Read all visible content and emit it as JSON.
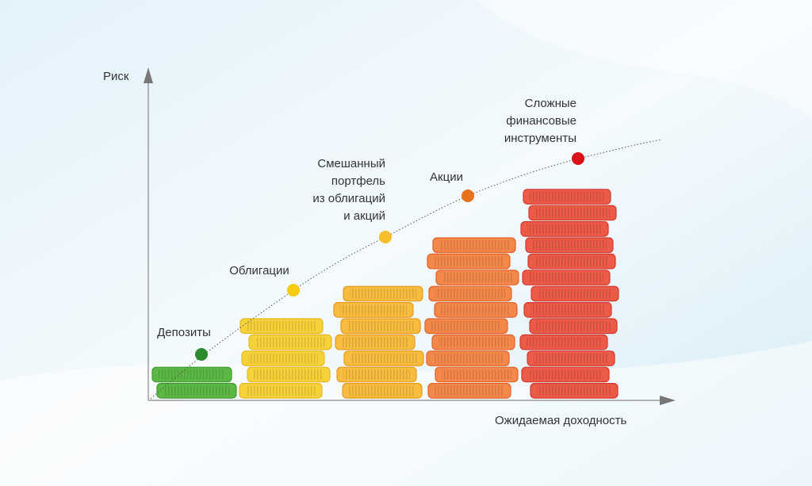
{
  "axes": {
    "y_label": "Риск",
    "x_label": "Ожидаемая доходность"
  },
  "nodes": [
    {
      "lines": [
        "Депозиты"
      ]
    },
    {
      "lines": [
        "Облигации"
      ]
    },
    {
      "lines": [
        "Смешанный",
        "портфель",
        "из облигаций",
        "и акций"
      ]
    },
    {
      "lines": [
        "Акции"
      ]
    },
    {
      "lines": [
        "Сложные",
        "финансовые",
        "инструменты"
      ]
    }
  ]
}
